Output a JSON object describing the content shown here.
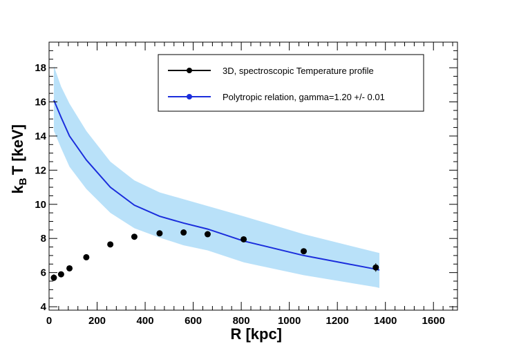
{
  "chart_data": {
    "type": "line",
    "xlabel": "R [kpc]",
    "ylabel": {
      "main": "k",
      "sub": "B",
      "rest": "T [keV]"
    },
    "xlim": [
      0,
      1700
    ],
    "ylim": [
      3.8,
      19.5
    ],
    "x_ticks": [
      0,
      200,
      400,
      600,
      800,
      1000,
      1200,
      1400,
      1600
    ],
    "y_ticks": [
      4,
      6,
      8,
      10,
      12,
      14,
      16,
      18
    ],
    "grid": false,
    "legend_position": "top-right",
    "series": [
      {
        "name": "3D, spectroscopic Temperature profile",
        "kind": "scatter",
        "color": "#000000",
        "x": [
          20,
          50,
          85,
          155,
          255,
          355,
          460,
          560,
          660,
          810,
          1060,
          1360
        ],
        "y": [
          5.7,
          5.9,
          6.25,
          6.9,
          7.65,
          8.1,
          8.3,
          8.35,
          8.25,
          7.95,
          7.25,
          6.3
        ],
        "yerr": [
          0.2,
          0.1,
          0.1,
          0.1,
          0.1,
          0.1,
          0.1,
          0.1,
          0.1,
          0.1,
          0.1,
          0.25
        ]
      },
      {
        "name": "Polytropic relation, gamma=1.20 +/- 0.01",
        "kind": "line",
        "color": "#1a2ddc",
        "x": [
          20,
          50,
          85,
          155,
          255,
          355,
          460,
          560,
          660,
          810,
          1060,
          1360,
          1375
        ],
        "y": [
          16.1,
          15.1,
          14.0,
          12.6,
          11.0,
          9.95,
          9.3,
          8.9,
          8.55,
          7.85,
          7.0,
          6.2,
          6.15
        ],
        "band_color": "#b9e1f9",
        "band_upper": [
          18.1,
          16.9,
          15.9,
          14.3,
          12.5,
          11.4,
          10.7,
          10.3,
          9.9,
          9.3,
          8.25,
          7.2,
          7.15
        ],
        "band_lower": [
          14.3,
          13.3,
          12.2,
          10.9,
          9.5,
          8.6,
          8.05,
          7.6,
          7.3,
          6.6,
          5.85,
          5.15,
          5.1
        ]
      }
    ]
  }
}
